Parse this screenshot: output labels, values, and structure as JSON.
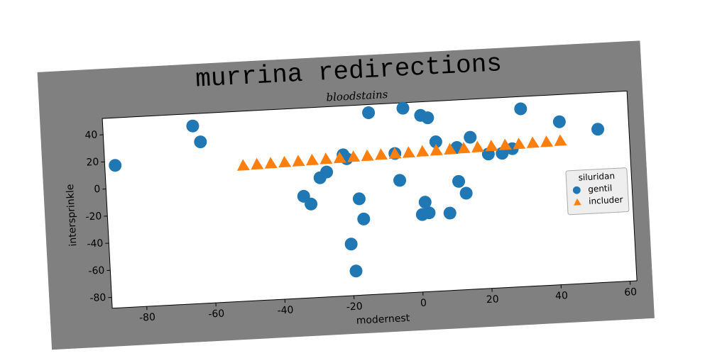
{
  "chart_data": {
    "type": "scatter",
    "title": "murrina redirections",
    "subtitle": "bloodstains",
    "x_label": "modernest",
    "y_label": "intersprinkle",
    "legend_title": "siluridan",
    "legend": "right",
    "xlim": [
      -90,
      62
    ],
    "xticks": [
      -80,
      -60,
      -40,
      -20,
      0,
      20,
      40,
      60
    ],
    "ylim": [
      -88,
      52
    ],
    "yticks": [
      -80,
      -60,
      -40,
      -20,
      0,
      20,
      40
    ],
    "series": [
      {
        "name": "gentil",
        "color": "#1f77b4",
        "marker": "circle",
        "x": [
          -87,
          -64,
          -62,
          -13,
          -3,
          2,
          4,
          6,
          -20,
          -21,
          -6,
          12,
          16,
          21,
          25,
          28,
          42,
          53,
          31,
          -28,
          -26,
          -33,
          -31,
          -17,
          -16,
          -20,
          -19,
          -5,
          2,
          1,
          3,
          9,
          12,
          14
        ],
        "values": [
          17,
          43,
          31,
          46,
          48,
          42,
          40,
          22,
          13,
          16,
          15,
          17,
          24,
          11,
          11,
          14,
          32,
          25,
          43,
          0,
          4,
          -13,
          -19,
          -17,
          -32,
          -50,
          -70,
          -5,
          -22,
          -31,
          -30,
          -31,
          -8,
          -17
        ]
      },
      {
        "name": "includer",
        "color": "#ff7f0e",
        "marker": "triangle",
        "x": [
          -50,
          -46,
          -42,
          -38,
          -34,
          -30,
          -26,
          -22,
          -18,
          -14,
          -10,
          -6,
          -2,
          2,
          6,
          10,
          14,
          18,
          22,
          26,
          30,
          34,
          38,
          42
        ],
        "values": [
          12,
          12.3,
          12.5,
          12.8,
          13,
          13.3,
          13.6,
          13.8,
          14.1,
          14.3,
          14.6,
          14.9,
          15.1,
          15.4,
          15.7,
          15.9,
          16.2,
          16.4,
          16.7,
          17,
          17.2,
          17.5,
          17.7,
          18
        ]
      }
    ]
  }
}
